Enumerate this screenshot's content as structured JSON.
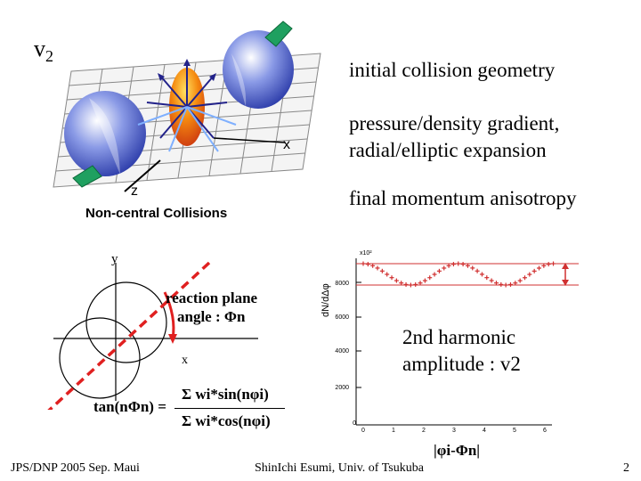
{
  "title": "v2",
  "title_main": "v",
  "title_sub": "2",
  "right_texts": {
    "initial": "initial collision geometry",
    "pressure_line1": "pressure/density gradient,",
    "pressure_line2": "radial/elliptic expansion",
    "final": "final momentum anisotropy"
  },
  "diagram_top": {
    "caption": "Non-central Collisions",
    "x_label": "x",
    "z_label": "z"
  },
  "diagram_bottom": {
    "y_label": "y",
    "x_label": "x",
    "reaction_plane_line1": "reaction plane",
    "reaction_plane_line2": "angle : Φn",
    "formula_lhs": "tan(nΦn) =",
    "formula_num": "Σ wi*sin(nφi)",
    "formula_den": "Σ wi*cos(nφi)"
  },
  "plot": {
    "harmonic_line1": "2nd harmonic",
    "harmonic_line2": "amplitude : v2",
    "x_axis_label": "|φi-Φn|",
    "y_axis_label": "dN/dΔφ",
    "scale_label": "x10²",
    "y_ticks": [
      "8000",
      "6000",
      "4000",
      "2000",
      "0"
    ],
    "x_ticks": [
      "0",
      "1",
      "2",
      "3",
      "4",
      "5",
      "6"
    ]
  },
  "footer": {
    "left": "JPS/DNP 2005 Sep. Maui",
    "center": "ShinIchi Esumi, Univ. of Tsukuba",
    "page": "2"
  },
  "colors": {
    "nucleus": "#4a5fd0",
    "overlap": "#f07a10",
    "arrow_green": "#1fa060",
    "reaction_plane": "#e02020",
    "plot_points": "#d03030"
  },
  "icons": [
    "nucleus-sphere",
    "overlap-almond",
    "momentum-arrow",
    "reaction-plane-dashed-line",
    "angle-arc"
  ]
}
